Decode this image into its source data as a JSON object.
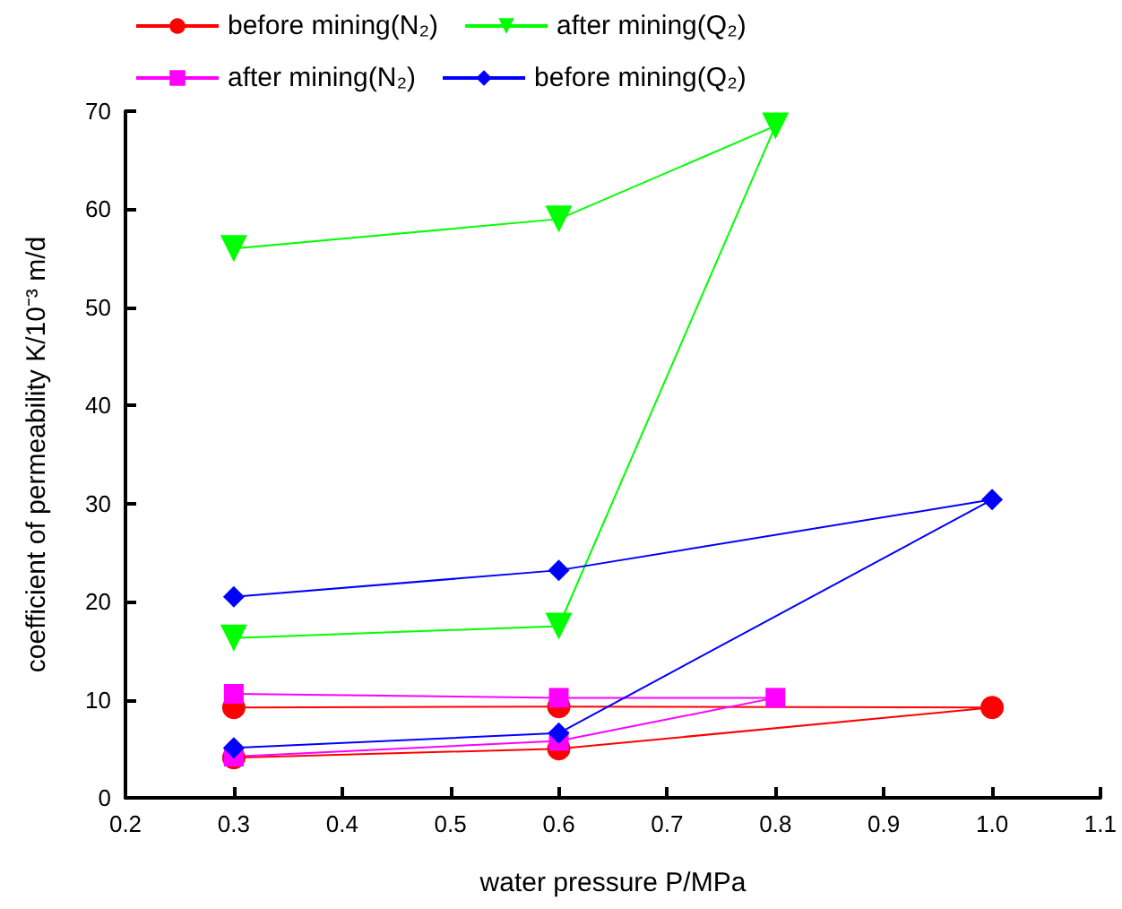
{
  "chart_data": {
    "type": "line",
    "xlabel": "water pressure P/MPa",
    "ylabel": "coefficient of permeability K/10⁻³ m/d",
    "xlim": [
      0.2,
      1.1
    ],
    "xticks": [
      0.2,
      0.3,
      0.4,
      0.5,
      0.6,
      0.7,
      0.8,
      0.9,
      {
        "value": 1.0,
        "label": "1.0"
      },
      1.1
    ],
    "ylim": [
      0,
      70
    ],
    "yticks": [
      0,
      10,
      20,
      30,
      40,
      50,
      60,
      70
    ],
    "grid": false,
    "legend": "top left",
    "series": [
      {
        "name": "before mining(N₂)",
        "color": "#ff0000",
        "marker": "circle",
        "x": [
          0.3,
          0.6,
          1.0,
          0.6,
          0.3
        ],
        "values": [
          9.2,
          9.3,
          9.2,
          5.0,
          4.1
        ]
      },
      {
        "name": "after mining(Q₂)",
        "color": "#00ff00",
        "marker": "triangle",
        "x": [
          0.3,
          0.6,
          0.8,
          0.6,
          0.3
        ],
        "values": [
          56,
          59,
          68.5,
          17.5,
          16.3
        ]
      },
      {
        "name": "after mining(N₂)",
        "color": "#ff00ff",
        "marker": "square",
        "x": [
          0.3,
          0.6,
          0.8,
          0.6,
          0.3
        ],
        "values": [
          10.6,
          10.2,
          10.2,
          5.8,
          4.2
        ]
      },
      {
        "name": "before mining(Q₂)",
        "color": "#0000ff",
        "marker": "diamond",
        "x": [
          0.3,
          0.6,
          1.0,
          0.6,
          0.3
        ],
        "values": [
          20.5,
          23.2,
          30.4,
          6.6,
          5.1
        ]
      }
    ]
  }
}
